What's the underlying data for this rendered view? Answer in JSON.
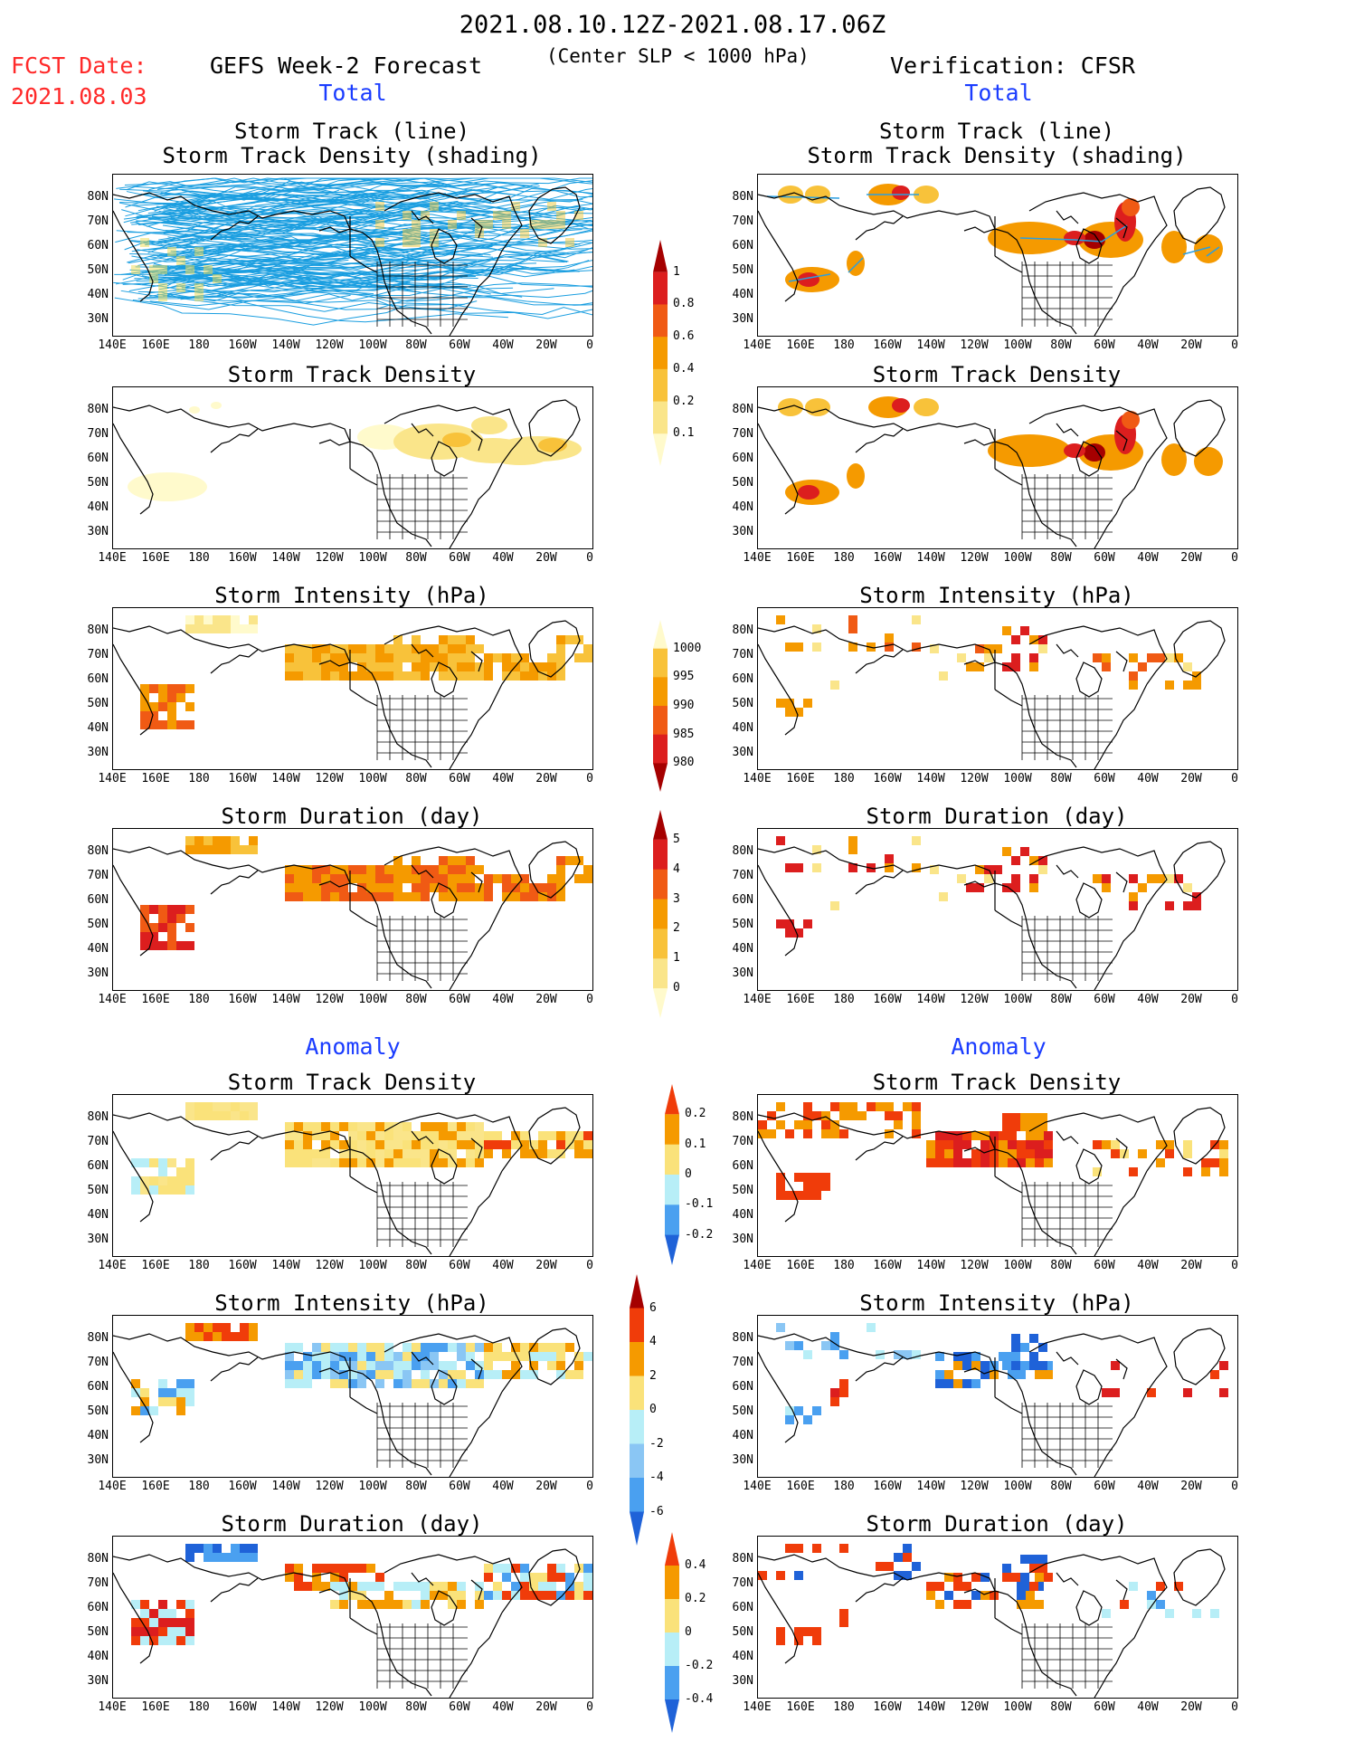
{
  "header": {
    "period": "2021.08.10.12Z-2021.08.17.06Z",
    "condition": "(Center SLP < 1000 hPa)",
    "fcst_label": "FCST Date:",
    "fcst_date": "2021.08.03",
    "model": "GEFS Week-2 Forecast",
    "verification": "Verification: CFSR",
    "total_left": "Total",
    "total_right": "Total",
    "anomaly_left": "Anomaly",
    "anomaly_right": "Anomaly"
  },
  "panel_titles": {
    "track_l1": "Storm Track (line)",
    "track_l2": "Storm Track Density (shading)",
    "density": "Storm Track Density",
    "intensity": "Storm Intensity (hPa)",
    "duration": "Storm Duration (day)"
  },
  "lat_labels": [
    "80N",
    "70N",
    "60N",
    "50N",
    "40N",
    "30N"
  ],
  "lon_labels": [
    "140E",
    "160E",
    "180",
    "160W",
    "140W",
    "120W",
    "100W",
    "80W",
    "60W",
    "40W",
    "20W",
    "0"
  ],
  "colorbars": {
    "density_total": {
      "labels": [
        "1",
        "0.8",
        "0.6",
        "0.4",
        "0.2",
        "0.1"
      ],
      "colors": [
        "#a50000",
        "#dc1e1e",
        "#f05a14",
        "#f59a00",
        "#f8c23a",
        "#fae58a",
        "#fffacc"
      ]
    },
    "intensity_total": {
      "labels": [
        "1000",
        "995",
        "990",
        "985",
        "980"
      ],
      "colors": [
        "#fffacc",
        "#f8c23a",
        "#f59a00",
        "#f05a14",
        "#dc1e1e",
        "#a50000"
      ]
    },
    "duration_total": {
      "labels": [
        "5",
        "4",
        "3",
        "2",
        "1",
        "0"
      ],
      "colors": [
        "#a50000",
        "#dc1e1e",
        "#f05a14",
        "#f59a00",
        "#f8c23a",
        "#fae58a",
        "#fffacc"
      ]
    },
    "density_anom": {
      "labels": [
        "0.2",
        "0.1",
        "0",
        "-0.1",
        "-0.2"
      ],
      "colors": [
        "#f03c0a",
        "#f59a00",
        "#fae27a",
        "#b7eef7",
        "#4aa0f0",
        "#1f62d8"
      ]
    },
    "intensity_anom": {
      "labels": [
        "6",
        "4",
        "2",
        "0",
        "-2",
        "-4",
        "-6"
      ],
      "colors": [
        "#a50000",
        "#f03c0a",
        "#f59a00",
        "#fae27a",
        "#b7eef7",
        "#8ac6f4",
        "#4aa0f0",
        "#1f62d8"
      ]
    },
    "duration_anom": {
      "labels": [
        "0.4",
        "0.2",
        "0",
        "-0.2",
        "-0.4"
      ],
      "colors": [
        "#f03c0a",
        "#f59a00",
        "#fae27a",
        "#b7eef7",
        "#4aa0f0",
        "#1f62d8"
      ]
    }
  }
}
